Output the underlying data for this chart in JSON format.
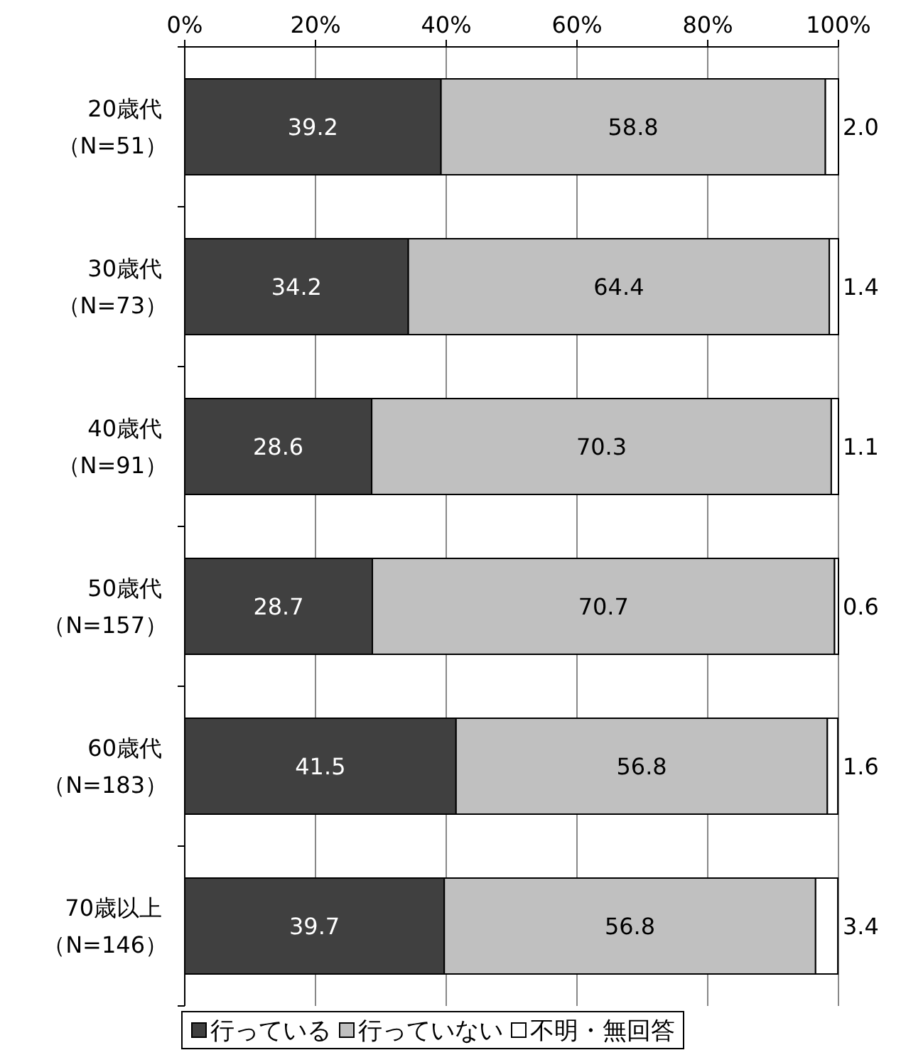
{
  "chart_data": {
    "type": "bar",
    "orientation": "horizontal",
    "stacked": true,
    "categories": [
      "20歳代（N=51）",
      "30歳代（N=73）",
      "40歳代（N=91）",
      "50歳代（N=157）",
      "60歳代（N=183）",
      "70歳以上（N=146）"
    ],
    "series": [
      {
        "name": "行っている",
        "color": "#404040",
        "values": [
          39.2,
          34.2,
          28.6,
          28.7,
          41.5,
          39.7
        ],
        "value_labels": [
          "39.2",
          "34.2",
          "28.6",
          "28.7",
          "41.5",
          "39.7"
        ]
      },
      {
        "name": "行っていない",
        "color": "#c0c0c0",
        "values": [
          58.8,
          64.4,
          70.3,
          70.7,
          56.8,
          56.8
        ],
        "value_labels": [
          "58.8",
          "64.4",
          "70.3",
          "70.7",
          "56.8",
          "56.8"
        ]
      },
      {
        "name": "不明・無回答",
        "color": "#ffffff",
        "values": [
          2.0,
          1.4,
          1.1,
          0.6,
          1.6,
          3.4
        ],
        "value_labels": [
          "2.0",
          "1.4",
          "1.1",
          "0.6",
          "1.6",
          "3.4"
        ]
      }
    ],
    "xlim": [
      0,
      100
    ],
    "xticks": [
      {
        "value": 0,
        "label": "0%"
      },
      {
        "value": 20,
        "label": "20%"
      },
      {
        "value": 40,
        "label": "40%"
      },
      {
        "value": 60,
        "label": "60%"
      },
      {
        "value": 80,
        "label": "80%"
      },
      {
        "value": 100,
        "label": "100%"
      }
    ],
    "grid": "x",
    "legend": "bottom"
  }
}
